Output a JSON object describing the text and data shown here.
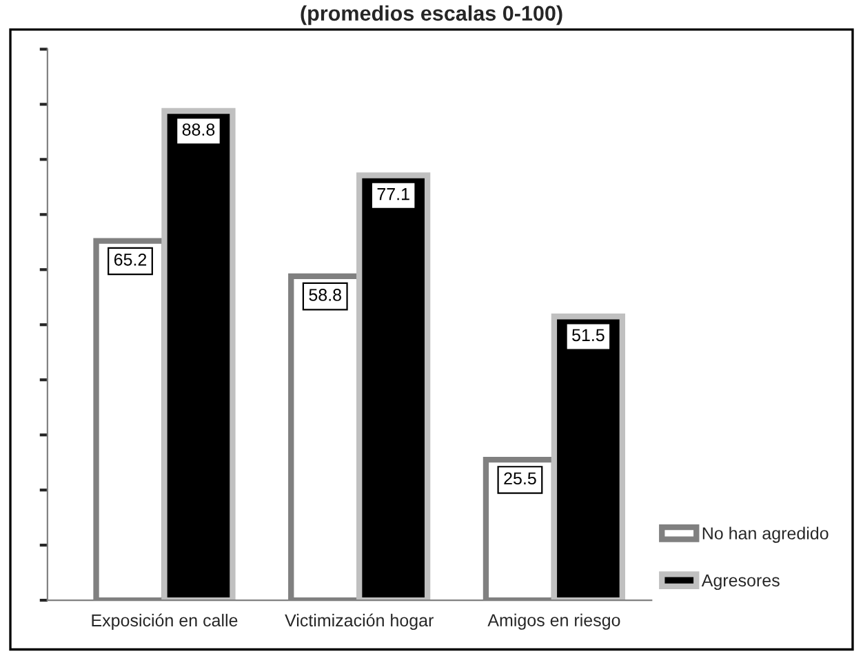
{
  "chart_data": {
    "type": "bar",
    "title": "(promedios escalas 0-100)",
    "categories": [
      "Exposición en calle",
      "Victimización hogar",
      "Amigos en riesgo"
    ],
    "series": [
      {
        "name": "No han agredido",
        "color": "#ffffff",
        "values": [
          65.2,
          58.8,
          25.5
        ]
      },
      {
        "name": "Agresores",
        "color": "#000000",
        "values": [
          88.8,
          77.1,
          51.5
        ]
      }
    ],
    "ylim": [
      0,
      100
    ],
    "yticks": [
      {
        "value": 0,
        "label": null
      },
      {
        "value": 10,
        "label": null
      },
      {
        "value": 20,
        "label": null
      },
      {
        "value": 30,
        "label": null
      },
      {
        "value": 40,
        "label": null
      },
      {
        "value": 50,
        "label": null
      },
      {
        "value": 60,
        "label": null
      },
      {
        "value": 70,
        "label": null
      },
      {
        "value": 80,
        "label": null
      },
      {
        "value": 90,
        "label": null
      },
      {
        "value": 100,
        "label": null
      }
    ],
    "tick_labels": "x",
    "data_labels": true,
    "legend": "bottom right",
    "grid": false
  }
}
